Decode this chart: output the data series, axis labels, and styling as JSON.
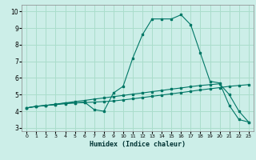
{
  "title": "",
  "xlabel": "Humidex (Indice chaleur)",
  "ylabel": "",
  "bg_color": "#cceee8",
  "grid_color": "#aaddcc",
  "line_color": "#007766",
  "xlim": [
    -0.5,
    23.5
  ],
  "ylim": [
    2.8,
    10.4
  ],
  "xticks": [
    0,
    1,
    2,
    3,
    4,
    5,
    6,
    7,
    8,
    9,
    10,
    11,
    12,
    13,
    14,
    15,
    16,
    17,
    18,
    19,
    20,
    21,
    22,
    23
  ],
  "yticks": [
    3,
    4,
    5,
    6,
    7,
    8,
    9,
    10
  ],
  "series1_x": [
    0,
    1,
    2,
    3,
    4,
    5,
    6,
    7,
    8,
    9,
    10,
    11,
    12,
    13,
    14,
    15,
    16,
    17,
    18,
    19,
    20,
    21,
    22,
    23
  ],
  "series1_y": [
    4.2,
    4.3,
    4.35,
    4.4,
    4.5,
    4.5,
    4.55,
    4.1,
    4.0,
    5.1,
    5.5,
    7.2,
    8.6,
    9.55,
    9.55,
    9.55,
    9.8,
    9.2,
    7.5,
    5.8,
    5.7,
    4.35,
    3.5,
    3.35
  ],
  "series2_x": [
    0,
    1,
    2,
    3,
    4,
    5,
    6,
    7,
    8,
    9,
    10,
    11,
    12,
    13,
    14,
    15,
    16,
    17,
    18,
    19,
    20,
    21,
    22,
    23
  ],
  "series2_y": [
    4.2,
    4.3,
    4.35,
    4.4,
    4.45,
    4.5,
    4.52,
    4.55,
    4.58,
    4.62,
    4.68,
    4.75,
    4.82,
    4.9,
    4.97,
    5.05,
    5.12,
    5.2,
    5.28,
    5.35,
    5.42,
    5.5,
    5.55,
    5.6
  ],
  "series3_x": [
    0,
    1,
    2,
    3,
    4,
    5,
    6,
    7,
    8,
    9,
    10,
    11,
    12,
    13,
    14,
    15,
    16,
    17,
    18,
    19,
    20,
    21,
    22,
    23
  ],
  "series3_y": [
    4.2,
    4.28,
    4.35,
    4.43,
    4.5,
    4.58,
    4.65,
    4.73,
    4.8,
    4.88,
    4.95,
    5.03,
    5.1,
    5.18,
    5.25,
    5.33,
    5.4,
    5.48,
    5.55,
    5.6,
    5.65,
    5.0,
    4.0,
    3.35
  ]
}
